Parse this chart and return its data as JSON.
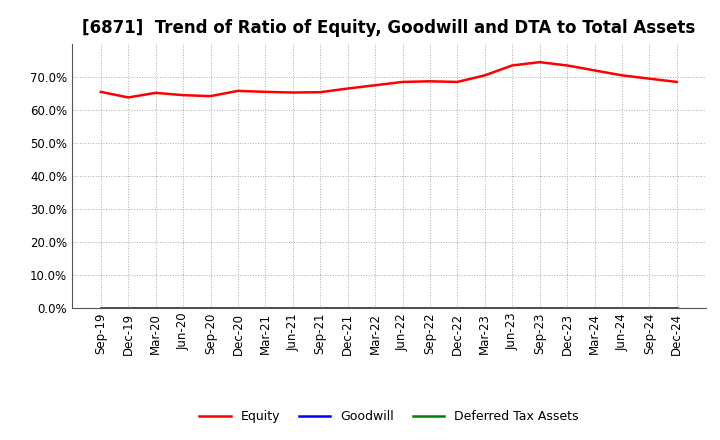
{
  "title": "[6871]  Trend of Ratio of Equity, Goodwill and DTA to Total Assets",
  "x_labels": [
    "Sep-19",
    "Dec-19",
    "Mar-20",
    "Jun-20",
    "Sep-20",
    "Dec-20",
    "Mar-21",
    "Jun-21",
    "Sep-21",
    "Dec-21",
    "Mar-22",
    "Jun-22",
    "Sep-22",
    "Dec-22",
    "Mar-23",
    "Jun-23",
    "Sep-23",
    "Dec-23",
    "Mar-24",
    "Jun-24",
    "Sep-24",
    "Dec-24"
  ],
  "equity": [
    65.5,
    63.8,
    65.2,
    64.5,
    64.2,
    65.8,
    65.5,
    65.3,
    65.4,
    66.5,
    67.5,
    68.5,
    68.7,
    68.5,
    70.5,
    73.5,
    74.5,
    73.5,
    72.0,
    70.5,
    69.5,
    68.5
  ],
  "goodwill": [
    0.0,
    0.0,
    0.0,
    0.0,
    0.0,
    0.0,
    0.0,
    0.0,
    0.0,
    0.0,
    0.0,
    0.0,
    0.0,
    0.0,
    0.0,
    0.0,
    0.0,
    0.0,
    0.0,
    0.0,
    0.0,
    0.0
  ],
  "dta": [
    0.0,
    0.0,
    0.0,
    0.0,
    0.0,
    0.0,
    0.0,
    0.0,
    0.0,
    0.0,
    0.0,
    0.0,
    0.0,
    0.0,
    0.0,
    0.0,
    0.0,
    0.0,
    0.0,
    0.0,
    0.0,
    0.0
  ],
  "equity_color": "#FF0000",
  "goodwill_color": "#0000FF",
  "dta_color": "#008000",
  "ylim": [
    0,
    80
  ],
  "yticks": [
    0,
    10,
    20,
    30,
    40,
    50,
    60,
    70
  ],
  "ytick_labels": [
    "0.0%",
    "10.0%",
    "20.0%",
    "30.0%",
    "40.0%",
    "50.0%",
    "60.0%",
    "70.0%"
  ],
  "bg_color": "#FFFFFF",
  "plot_bg_color": "#FFFFFF",
  "grid_color": "#AAAAAA",
  "legend_labels": [
    "Equity",
    "Goodwill",
    "Deferred Tax Assets"
  ],
  "title_fontsize": 12,
  "tick_fontsize": 8.5,
  "line_width": 1.8
}
